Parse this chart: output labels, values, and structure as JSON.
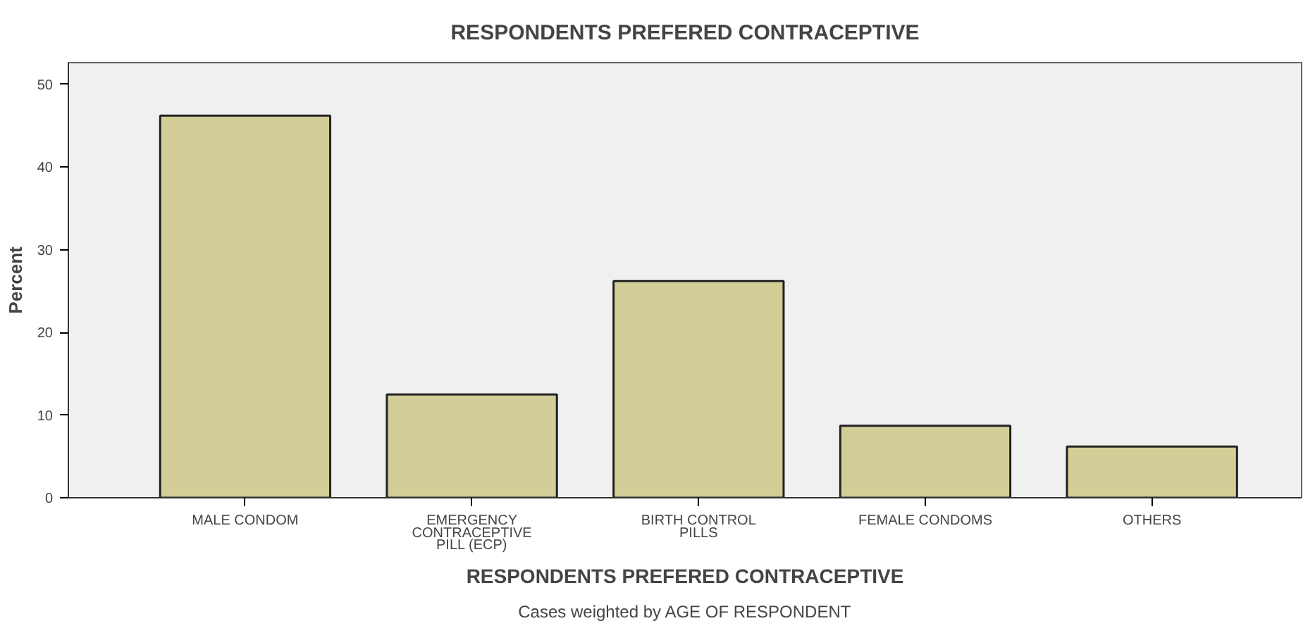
{
  "chart_data": {
    "type": "bar",
    "title": "RESPONDENTS PREFERED CONTRACEPTIVE",
    "xlabel": "RESPONDENTS PREFERED CONTRACEPTIVE",
    "ylabel": "Percent",
    "categories": [
      "MALE CONDOM",
      "EMERGENCY\nCONTRACEPTIVE\nPILL (ECP)",
      "BIRTH CONTROL\nPILLS",
      "FEMALE CONDOMS",
      "OTHERS"
    ],
    "values": [
      46.2,
      12.5,
      26.2,
      8.7,
      6.2
    ],
    "color": "#d3cd97",
    "ylim": [
      0,
      52.6
    ],
    "yticks": [
      0,
      10,
      20,
      30,
      40,
      50
    ],
    "grid": false,
    "annotations": [
      "Cases weighted by AGE OF RESPONDENT"
    ]
  }
}
